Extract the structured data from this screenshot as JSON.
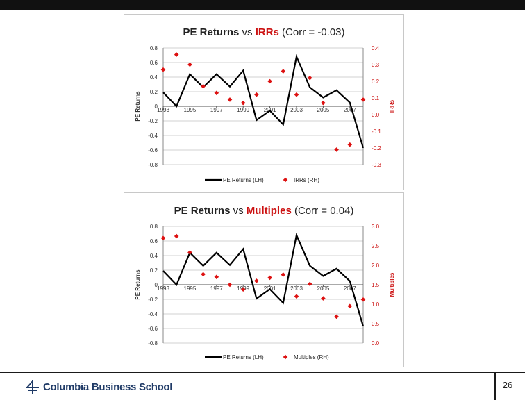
{
  "slide": {
    "page_number": "26",
    "logo_text": "Columbia Business School"
  },
  "chart_data": [
    {
      "type": "line",
      "title_parts": [
        "PE Returns",
        " vs ",
        "IRRs",
        " (Corr = -0.03)"
      ],
      "left_axis": {
        "label": "PE Returns",
        "ylim": [
          -0.8,
          0.8
        ],
        "ticks": [
          "0.8",
          "0.6",
          "0.4",
          "0.2",
          "0",
          "-0.2",
          "-0.4",
          "-0.6",
          "-0.8"
        ]
      },
      "right_axis": {
        "label": "IRRs",
        "ylim": [
          -0.3,
          0.4
        ],
        "ticks": [
          "0.4",
          "0.3",
          "0.2",
          "0.1",
          "0.0",
          "-0.1",
          "-0.2",
          "-0.3"
        ]
      },
      "x_labels": [
        "1993",
        "1995",
        "1997",
        "1999",
        "2001",
        "2003",
        "2005",
        "2007"
      ],
      "x": [
        1993,
        1994,
        1995,
        1996,
        1997,
        1998,
        1999,
        2000,
        2001,
        2002,
        2003,
        2004,
        2005,
        2006,
        2007,
        2008
      ],
      "series": [
        {
          "name": "PE Returns (LH)",
          "axis": "left",
          "kind": "line",
          "color": "#000000",
          "values": [
            0.19,
            0.0,
            0.44,
            0.26,
            0.44,
            0.27,
            0.49,
            -0.19,
            -0.06,
            -0.25,
            0.68,
            0.26,
            0.12,
            0.22,
            0.05,
            -0.57
          ]
        },
        {
          "name": "IRRs (RH)",
          "axis": "right",
          "kind": "marker",
          "color": "#dd1111",
          "values": [
            0.27,
            0.36,
            0.3,
            0.17,
            0.13,
            0.09,
            0.07,
            0.12,
            0.2,
            0.26,
            0.12,
            0.22,
            0.07,
            -0.21,
            -0.18,
            0.09
          ]
        }
      ],
      "legend_position": "bottom"
    },
    {
      "type": "line",
      "title_parts": [
        "PE Returns",
        " vs ",
        "Multiples",
        " (Corr = 0.04)"
      ],
      "left_axis": {
        "label": "PE Returns",
        "ylim": [
          -0.8,
          0.8
        ],
        "ticks": [
          "0.8",
          "0.6",
          "0.4",
          "0.2",
          "0",
          "-0.2",
          "-0.4",
          "-0.6",
          "-0.8"
        ]
      },
      "right_axis": {
        "label": "Multiples",
        "ylim": [
          0.0,
          3.0
        ],
        "ticks": [
          "3.0",
          "2.5",
          "2.0",
          "1.5",
          "1.0",
          "0.5",
          "0.0"
        ]
      },
      "x_labels": [
        "1993",
        "1995",
        "1997",
        "1999",
        "2001",
        "2003",
        "2005",
        "2007"
      ],
      "x": [
        1993,
        1994,
        1995,
        1996,
        1997,
        1998,
        1999,
        2000,
        2001,
        2002,
        2003,
        2004,
        2005,
        2006,
        2007,
        2008
      ],
      "series": [
        {
          "name": "PE Returns (LH)",
          "axis": "left",
          "kind": "line",
          "color": "#000000",
          "values": [
            0.19,
            0.0,
            0.44,
            0.26,
            0.44,
            0.27,
            0.49,
            -0.19,
            -0.06,
            -0.25,
            0.68,
            0.26,
            0.12,
            0.22,
            0.05,
            -0.57
          ]
        },
        {
          "name": "Multiples (RH)",
          "axis": "right",
          "kind": "marker",
          "color": "#dd1111",
          "values": [
            2.7,
            2.75,
            2.33,
            1.77,
            1.7,
            1.5,
            1.38,
            1.6,
            1.68,
            1.76,
            1.2,
            1.52,
            1.15,
            0.68,
            0.95,
            1.12
          ]
        }
      ],
      "legend_position": "bottom"
    }
  ]
}
